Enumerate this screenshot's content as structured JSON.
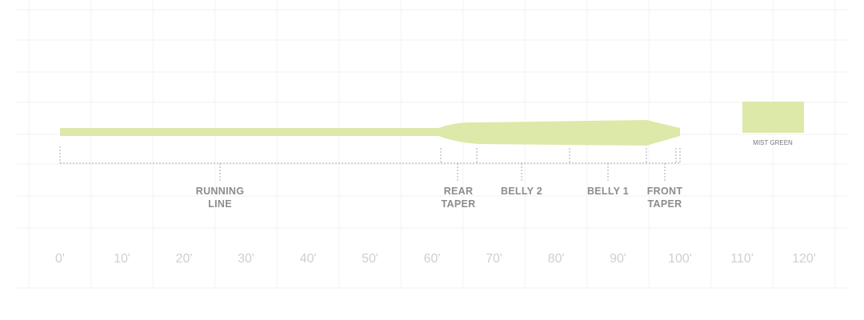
{
  "axis": {
    "labels": [
      "0'",
      "10'",
      "20'",
      "30'",
      "40'",
      "50'",
      "60'",
      "70'",
      "80'",
      "90'",
      "100'",
      "110'",
      "120'"
    ]
  },
  "segments": [
    {
      "label": [
        "RUNNING",
        "LINE"
      ]
    },
    {
      "label": [
        "REAR",
        "TAPER"
      ]
    },
    {
      "label": [
        "BELLY 2"
      ]
    },
    {
      "label": [
        "BELLY 1"
      ]
    },
    {
      "label": [
        "FRONT",
        "TAPER"
      ]
    }
  ],
  "swatch": {
    "label": "MIST GREEN"
  }
}
